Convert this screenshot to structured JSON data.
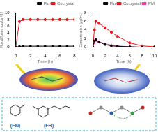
{
  "chart_data": [
    {
      "type": "line",
      "x_label": "Time (h)",
      "y_label": "Flux diffused (μg/cm²/h)",
      "x": [
        0,
        0.5,
        1,
        2,
        3,
        4,
        5,
        6,
        7,
        8
      ],
      "series": [
        {
          "name": "Flu",
          "color": "#000000",
          "marker": "square",
          "values": [
            0,
            0.2,
            0.3,
            0.3,
            0.3,
            0.3,
            0.3,
            0.3,
            0.3,
            0.3
          ]
        },
        {
          "name": "Cocrystal",
          "color": "#e8141b",
          "marker": "circle",
          "values": [
            0,
            7.4,
            8.0,
            8.0,
            8.0,
            8.0,
            8.0,
            8.0,
            8.0,
            8.0
          ]
        }
      ],
      "xlim": [
        0,
        8
      ],
      "xticks": [
        0,
        2,
        4,
        6,
        8
      ],
      "ylim": [
        0,
        10
      ],
      "yticks": [
        0,
        2,
        4,
        6,
        8,
        10
      ],
      "grid": false,
      "legend": "top"
    },
    {
      "type": "line",
      "x_label": "Time (h)",
      "y_label": "Concentration (μg/mL)",
      "x": [
        0,
        0.25,
        0.5,
        1,
        2,
        3,
        4,
        6,
        8,
        10
      ],
      "series": [
        {
          "name": "Flu",
          "color": "#000000",
          "marker": "square",
          "values": [
            0,
            1.5,
            1.8,
            1.2,
            0.6,
            0.3,
            0.2,
            0.1,
            0,
            0
          ]
        },
        {
          "name": "Cocrystal",
          "color": "#e8141b",
          "marker": "circle",
          "values": [
            0,
            4.0,
            6.0,
            5.5,
            4.5,
            3.5,
            2.5,
            1.0,
            0.3,
            0.1
          ]
        },
        {
          "name": "PM",
          "color": "#e040a0",
          "marker": "triangle",
          "values": [
            0,
            1.0,
            1.5,
            1.3,
            0.8,
            0.5,
            0.3,
            0.1,
            0,
            0
          ]
        }
      ],
      "xlim": [
        0,
        10
      ],
      "xticks": [
        0,
        2,
        4,
        6,
        8,
        10
      ],
      "ylim": [
        0,
        8
      ],
      "yticks": [
        0,
        2,
        4,
        6,
        8
      ],
      "grid": false,
      "legend": "top"
    }
  ],
  "figure": {
    "labels": [
      "(Flu)",
      "(FR)"
    ]
  }
}
